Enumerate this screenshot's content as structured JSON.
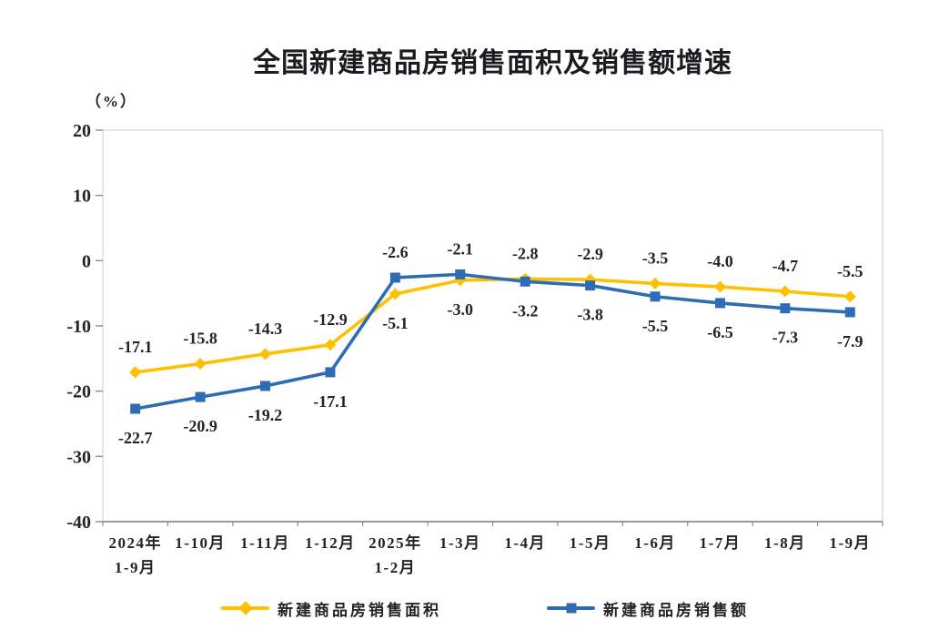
{
  "title": "全国新建商品房销售面积及销售额增速",
  "unit_label": "（%）",
  "colors": {
    "series_area": "#FFC000",
    "series_amount": "#2E6DB4",
    "axis": "#8c8c8c",
    "plot_border": "#d6d6d6",
    "text": "#23232b",
    "background": "#ffffff"
  },
  "chart_data": {
    "type": "line",
    "title": "全国新建商品房销售面积及销售额增速",
    "ylabel": "（%）",
    "xlabel": "",
    "ylim": [
      -40,
      20
    ],
    "yticks": [
      20,
      10,
      0,
      -10,
      -20,
      -30,
      -40
    ],
    "grid": false,
    "legend_position": "bottom",
    "data_labels": true,
    "categories": [
      [
        "2024年",
        "1-9月"
      ],
      [
        "1-10月"
      ],
      [
        "1-11月"
      ],
      [
        "1-12月"
      ],
      [
        "2025年",
        "1-2月"
      ],
      [
        "1-3月"
      ],
      [
        "1-4月"
      ],
      [
        "1-5月"
      ],
      [
        "1-6月"
      ],
      [
        "1-7月"
      ],
      [
        "1-8月"
      ],
      [
        "1-9月"
      ]
    ],
    "series": [
      {
        "name": "新建商品房销售面积",
        "color": "#FFC000",
        "marker": "diamond",
        "values": [
          -17.1,
          -15.8,
          -14.3,
          -12.9,
          -5.1,
          -3.0,
          -2.8,
          -2.9,
          -3.5,
          -4.0,
          -4.7,
          -5.5
        ]
      },
      {
        "name": "新建商品房销售额",
        "color": "#2E6DB4",
        "marker": "square",
        "values": [
          -22.7,
          -20.9,
          -19.2,
          -17.1,
          -2.6,
          -2.1,
          -3.2,
          -3.8,
          -5.5,
          -6.5,
          -7.3,
          -7.9
        ]
      }
    ]
  }
}
